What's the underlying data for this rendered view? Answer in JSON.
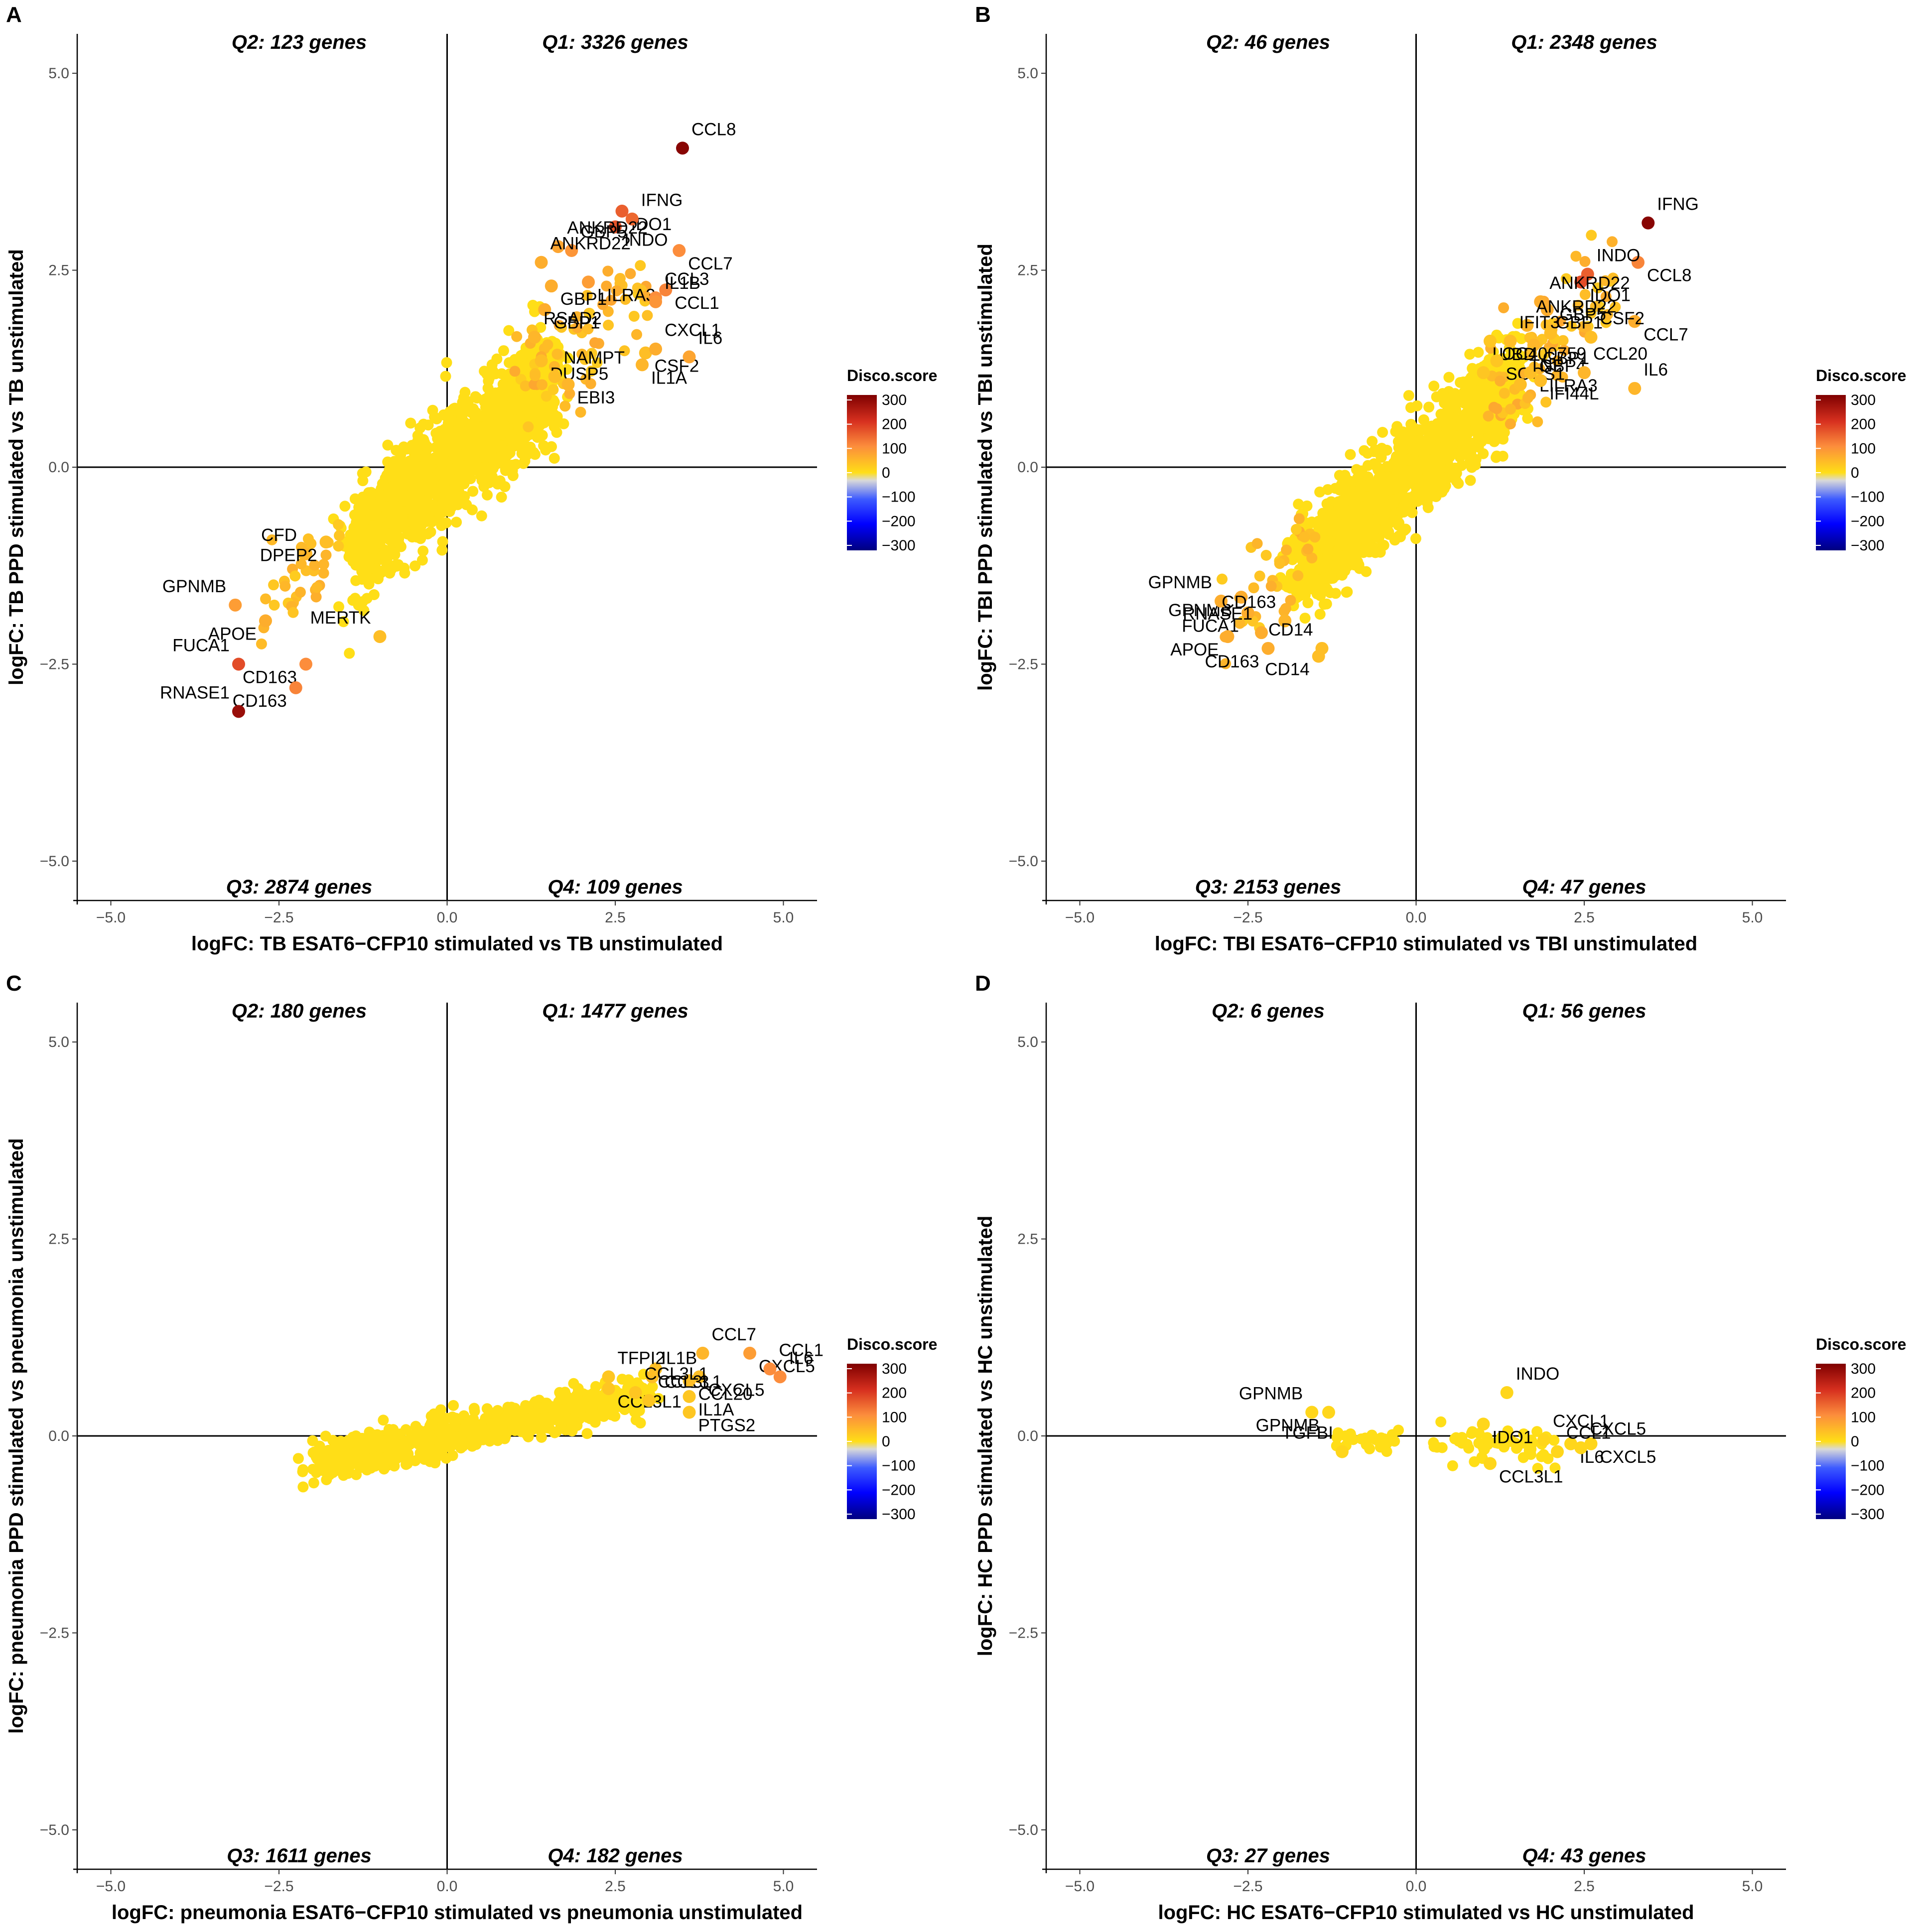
{
  "color_scale": {
    "title": "Disco.score",
    "ticks": [
      "300",
      "200",
      "100",
      "0",
      "−100",
      "−200",
      "−300"
    ],
    "stops": [
      "#7f0000",
      "#d7301f",
      "#fc8d3c",
      "#ffde17",
      "#d9d9d9",
      "#3d5bff",
      "#0000ff",
      "#00007f"
    ]
  },
  "chart_data": [
    {
      "type": "scatter",
      "panel": "A",
      "xlabel": "logFC: TB ESAT6−CFP10 stimulated vs TB unstimulated",
      "ylabel": "logFC: TB PPD stimulated vs TB unstimulated",
      "xlim": [
        -5.5,
        5.5
      ],
      "ylim": [
        -5.5,
        5.5
      ],
      "xticks": [
        "−5.0",
        "−2.5",
        "0.0",
        "2.5",
        "5.0"
      ],
      "yticks": [
        "−5.0",
        "−2.5",
        "0.0",
        "2.5",
        "5.0"
      ],
      "quadrants": {
        "q1": "Q1: 3326 genes",
        "q2": "Q2: 123 genes",
        "q3": "Q3: 2874 genes",
        "q4": "Q4: 109 genes"
      },
      "cloud": {
        "xrange": [
          -1.4,
          1.6
        ],
        "slope": 0.72,
        "spread": 0.35
      },
      "points": [
        {
          "label": "CCL8",
          "x": 3.5,
          "y": 4.05,
          "score": 290
        },
        {
          "label": "IDO1",
          "x": 2.6,
          "y": 3.25,
          "score": 150
        },
        {
          "label": "IFNG",
          "x": 2.75,
          "y": 3.15,
          "score": 140
        },
        {
          "label": "INDO",
          "x": 2.5,
          "y": 3.05,
          "score": 160
        },
        {
          "label": "GBP5",
          "x": 1.85,
          "y": 2.75,
          "score": 90
        },
        {
          "label": "CCL7",
          "x": 3.45,
          "y": 2.75,
          "score": 100
        },
        {
          "label": "ANKRD22",
          "x": 1.65,
          "y": 2.8,
          "score": 70
        },
        {
          "label": "LILRA3",
          "x": 2.1,
          "y": 2.35,
          "score": 80
        },
        {
          "label": "ANKRD22",
          "x": 1.4,
          "y": 2.6,
          "score": 60
        },
        {
          "label": "GBP1",
          "x": 1.55,
          "y": 2.3,
          "score": 60
        },
        {
          "label": "CCL3",
          "x": 3.1,
          "y": 2.15,
          "score": 100
        },
        {
          "label": "CCL1",
          "x": 3.25,
          "y": 2.25,
          "score": 110
        },
        {
          "label": "IL1B",
          "x": 3.1,
          "y": 2.1,
          "score": 90
        },
        {
          "label": "GBP1",
          "x": 1.45,
          "y": 2.0,
          "score": 60
        },
        {
          "label": "RSAD2",
          "x": 1.3,
          "y": 1.65,
          "score": 50
        },
        {
          "label": "CSF2",
          "x": 2.95,
          "y": 1.45,
          "score": 40
        },
        {
          "label": "CXCL1",
          "x": 3.1,
          "y": 1.5,
          "score": 60
        },
        {
          "label": "DUSP5",
          "x": 1.4,
          "y": 1.35,
          "score": 40
        },
        {
          "label": "IL6",
          "x": 3.6,
          "y": 1.4,
          "score": 70
        },
        {
          "label": "IL1A",
          "x": 2.9,
          "y": 1.3,
          "score": 50
        },
        {
          "label": "NAMPT",
          "x": 1.6,
          "y": 1.15,
          "score": 40
        },
        {
          "label": "EBI3",
          "x": 1.8,
          "y": 1.05,
          "score": 50
        },
        {
          "label": "CFD",
          "x": -2.1,
          "y": -1.1,
          "score": 50
        },
        {
          "label": "DPEP2",
          "x": -1.8,
          "y": -0.95,
          "score": 40
        },
        {
          "label": "GPNMB",
          "x": -3.15,
          "y": -1.75,
          "score": 80
        },
        {
          "label": "APOE",
          "x": -2.7,
          "y": -1.95,
          "score": 60
        },
        {
          "label": "MERTK",
          "x": -1.0,
          "y": -2.15,
          "score": 40
        },
        {
          "label": "CD163",
          "x": -2.1,
          "y": -2.5,
          "score": 100
        },
        {
          "label": "FUCA1",
          "x": -3.1,
          "y": -2.5,
          "score": 170
        },
        {
          "label": "CD163",
          "x": -2.25,
          "y": -2.8,
          "score": 110
        },
        {
          "label": "RNASE1",
          "x": -3.1,
          "y": -3.1,
          "score": 270
        }
      ]
    },
    {
      "type": "scatter",
      "panel": "B",
      "xlabel": "logFC: TBI ESAT6−CFP10 stimulated vs TBI unstimulated",
      "ylabel": "logFC: TBI PPD stimulated vs TBI unstimulated",
      "xlim": [
        -5.5,
        5.5
      ],
      "ylim": [
        -5.5,
        5.5
      ],
      "xticks": [
        "−5.0",
        "−2.5",
        "0.0",
        "2.5",
        "5.0"
      ],
      "yticks": [
        "−5.0",
        "−2.5",
        "0.0",
        "2.5",
        "5.0"
      ],
      "quadrants": {
        "q1": "Q1: 2348 genes",
        "q2": "Q2: 46 genes",
        "q3": "Q3: 2153 genes",
        "q4": "Q4: 47 genes"
      },
      "cloud": {
        "xrange": [
          -1.8,
          1.5
        ],
        "slope": 0.75,
        "spread": 0.3
      },
      "points": [
        {
          "label": "IFNG",
          "x": 3.45,
          "y": 3.1,
          "score": 290
        },
        {
          "label": "CCL8",
          "x": 3.3,
          "y": 2.6,
          "score": 110
        },
        {
          "label": "INDO",
          "x": 2.55,
          "y": 2.45,
          "score": 150
        },
        {
          "label": "IDO1",
          "x": 2.45,
          "y": 2.35,
          "score": 170
        },
        {
          "label": "ANKRD22",
          "x": 1.85,
          "y": 2.1,
          "score": 60
        },
        {
          "label": "GBP1",
          "x": 1.95,
          "y": 2.0,
          "score": 60
        },
        {
          "label": "GBP5",
          "x": 2.0,
          "y": 1.7,
          "score": 40
        },
        {
          "label": "CCL7",
          "x": 3.25,
          "y": 1.85,
          "score": 60
        },
        {
          "label": "ANKRD22",
          "x": 1.65,
          "y": 1.8,
          "score": 50
        },
        {
          "label": "GBP1",
          "x": 1.75,
          "y": 1.55,
          "score": 50
        },
        {
          "label": "IFIT3",
          "x": 1.4,
          "y": 1.6,
          "score": 40
        },
        {
          "label": "GBP4",
          "x": 1.7,
          "y": 1.45,
          "score": 40
        },
        {
          "label": "CSF2",
          "x": 2.6,
          "y": 1.65,
          "score": 40
        },
        {
          "label": "UBD",
          "x": 1.1,
          "y": 1.6,
          "score": 30
        },
        {
          "label": "LOC400759",
          "x": 1.0,
          "y": 1.2,
          "score": 30
        },
        {
          "label": "SOCS1",
          "x": 1.2,
          "y": 1.35,
          "score": 30
        },
        {
          "label": "CCL20",
          "x": 2.5,
          "y": 1.2,
          "score": 50
        },
        {
          "label": "LILRA3",
          "x": 1.7,
          "y": 1.2,
          "score": 40
        },
        {
          "label": "TNF",
          "x": 1.55,
          "y": 1.05,
          "score": 40
        },
        {
          "label": "IFI44L",
          "x": 1.85,
          "y": 1.1,
          "score": 40
        },
        {
          "label": "IL6",
          "x": 3.25,
          "y": 1.0,
          "score": 50
        },
        {
          "label": "GPNMB",
          "x": -2.6,
          "y": -1.65,
          "score": 60
        },
        {
          "label": "GPNMB",
          "x": -2.9,
          "y": -1.7,
          "score": 60
        },
        {
          "label": "FUCA1",
          "x": -2.5,
          "y": -1.85,
          "score": 60
        },
        {
          "label": "CD163",
          "x": -1.95,
          "y": -1.95,
          "score": 50
        },
        {
          "label": "APOE",
          "x": -2.8,
          "y": -2.15,
          "score": 60
        },
        {
          "label": "RNASE1",
          "x": -2.3,
          "y": -2.1,
          "score": 60
        },
        {
          "label": "CD163",
          "x": -2.2,
          "y": -2.3,
          "score": 60
        },
        {
          "label": "CD14",
          "x": -1.4,
          "y": -2.3,
          "score": 40
        },
        {
          "label": "CD14",
          "x": -1.45,
          "y": -2.4,
          "score": 40
        }
      ]
    },
    {
      "type": "scatter",
      "panel": "C",
      "xlabel": "logFC: pneumonia ESAT6−CFP10 stimulated vs pneumonia unstimulated",
      "ylabel": "logFC: pneumonia PPD stimulated vs pneumonia unstimulated",
      "xlim": [
        -5.5,
        5.5
      ],
      "ylim": [
        -5.5,
        5.5
      ],
      "xticks": [
        "−5.0",
        "−2.5",
        "0.0",
        "2.5",
        "5.0"
      ],
      "yticks": [
        "−5.0",
        "−2.5",
        "0.0",
        "2.5",
        "5.0"
      ],
      "quadrants": {
        "q1": "Q1: 1477 genes",
        "q2": "Q2: 180 genes",
        "q3": "Q3: 1611 genes",
        "q4": "Q4: 182 genes"
      },
      "cloud": {
        "xrange": [
          -2.0,
          3.0
        ],
        "slope": 0.18,
        "spread": 0.13
      },
      "points": [
        {
          "label": "CCL7",
          "x": 3.8,
          "y": 1.05,
          "score": 50
        },
        {
          "label": "CXCL5",
          "x": 4.5,
          "y": 1.05,
          "score": 80
        },
        {
          "label": "CCL1",
          "x": 4.8,
          "y": 0.85,
          "score": 100
        },
        {
          "label": "CXCL5",
          "x": 3.75,
          "y": 0.75,
          "score": 40
        },
        {
          "label": "IL6",
          "x": 4.95,
          "y": 0.75,
          "score": 100
        },
        {
          "label": "CCL3",
          "x": 3.1,
          "y": 0.85,
          "score": 40
        },
        {
          "label": "IL1B",
          "x": 3.05,
          "y": 0.75,
          "score": 40
        },
        {
          "label": "CCL20",
          "x": 3.6,
          "y": 0.7,
          "score": 40
        },
        {
          "label": "TFPI2",
          "x": 2.4,
          "y": 0.75,
          "score": 30
        },
        {
          "label": "CCL3L1",
          "x": 2.4,
          "y": 0.6,
          "score": 30
        },
        {
          "label": "CCL3L1",
          "x": 2.8,
          "y": 0.55,
          "score": 30
        },
        {
          "label": "IL1A",
          "x": 3.6,
          "y": 0.5,
          "score": 30
        },
        {
          "label": "CCL3L1",
          "x": 3.0,
          "y": 0.45,
          "score": 30
        },
        {
          "label": "PTGS2",
          "x": 3.6,
          "y": 0.3,
          "score": 30
        }
      ]
    },
    {
      "type": "scatter",
      "panel": "D",
      "xlabel": "logFC: HC ESAT6−CFP10 stimulated vs HC unstimulated",
      "ylabel": "logFC: HC PPD stimulated vs HC unstimulated",
      "xlim": [
        -5.5,
        5.5
      ],
      "ylim": [
        -5.5,
        5.5
      ],
      "xticks": [
        "−5.0",
        "−2.5",
        "0.0",
        "2.5",
        "5.0"
      ],
      "yticks": [
        "−5.0",
        "−2.5",
        "0.0",
        "2.5",
        "5.0"
      ],
      "quadrants": {
        "q1": "Q1: 56 genes",
        "q2": "Q2: 6 genes",
        "q3": "Q3: 27 genes",
        "q4": "Q4: 43 genes"
      },
      "cloud": {
        "xrange": [
          0.2,
          2.0
        ],
        "slope": -0.08,
        "spread": 0.12,
        "extra": {
          "xrange": [
            -1.2,
            -0.2
          ],
          "y": -0.05,
          "spread": 0.06,
          "n": 28
        }
      },
      "points": [
        {
          "label": "INDO",
          "x": 1.35,
          "y": 0.55,
          "score": 10
        },
        {
          "label": "GPNMB",
          "x": -1.3,
          "y": 0.3,
          "score": 10
        },
        {
          "label": "GPNMB",
          "x": -1.55,
          "y": 0.3,
          "score": 10
        },
        {
          "label": "IDO1",
          "x": 1.0,
          "y": 0.15,
          "score": 10
        },
        {
          "label": "CXCL1",
          "x": 1.9,
          "y": -0.05,
          "score": 10
        },
        {
          "label": "CXCL5",
          "x": 2.6,
          "y": -0.1,
          "score": 10
        },
        {
          "label": "TGFBI",
          "x": -1.1,
          "y": -0.2,
          "score": 10
        },
        {
          "label": "IL6",
          "x": 2.3,
          "y": -0.1,
          "score": 10
        },
        {
          "label": "CCL1",
          "x": 2.1,
          "y": -0.2,
          "score": 10
        },
        {
          "label": "CCL3L1",
          "x": 1.1,
          "y": -0.35,
          "score": 10
        },
        {
          "label": "CXCL5",
          "x": 2.45,
          "y": -0.15,
          "score": 10
        }
      ]
    }
  ]
}
